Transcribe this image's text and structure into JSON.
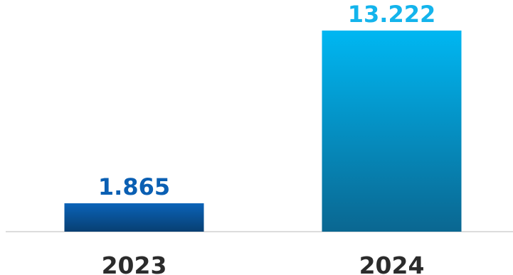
{
  "chart_data": {
    "type": "bar",
    "categories": [
      "2023",
      "2024"
    ],
    "values": [
      1865,
      13222
    ],
    "value_labels": [
      "1.865",
      "13.222"
    ],
    "title": "",
    "xlabel": "",
    "ylabel": "",
    "ylim": [
      0,
      13222
    ],
    "grid": false,
    "legend": "none",
    "colors": {
      "bar_2023_top": "#0a63b8",
      "bar_2023_bottom": "#083f72",
      "bar_2024_top": "#00b7f2",
      "bar_2024_bottom": "#0a6791",
      "label_2023": "#0a5fb3",
      "label_2024": "#14b4ec",
      "category_text": "#2b2b2b",
      "baseline": "#d0d0d0"
    }
  }
}
